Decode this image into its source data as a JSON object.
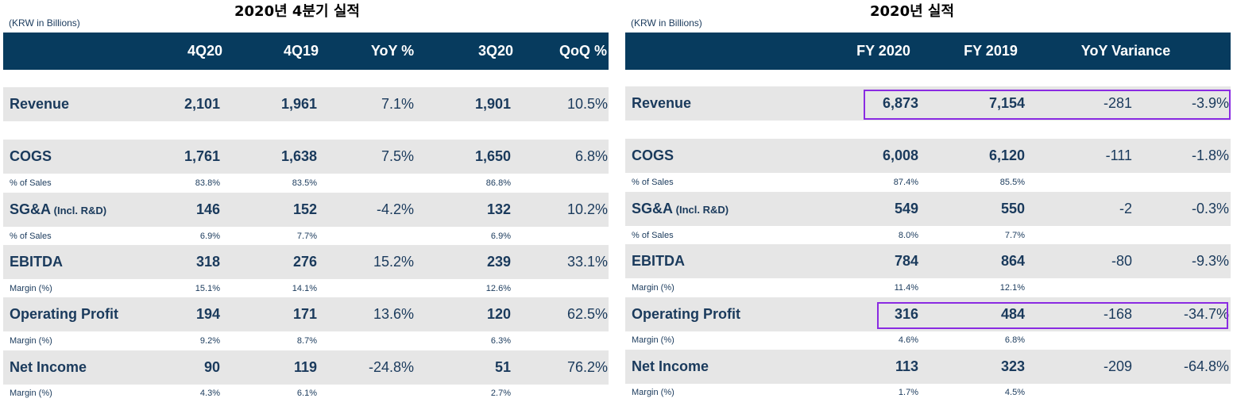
{
  "left": {
    "title": "2020년 4분기 실적",
    "unit": "(KRW in Billions)",
    "headers": [
      "4Q20",
      "4Q19",
      "YoY %",
      "3Q20",
      "QoQ %"
    ],
    "rows": {
      "revenue": {
        "label": "Revenue",
        "v": [
          "2,101",
          "1,961",
          "7.1%",
          "1,901",
          "10.5%"
        ]
      },
      "cogs": {
        "label": "COGS",
        "v": [
          "1,761",
          "1,638",
          "7.5%",
          "1,650",
          "6.8%"
        ]
      },
      "cogs_sub": {
        "label": "% of Sales",
        "v": [
          "83.8%",
          "83.5%",
          "86.8%"
        ]
      },
      "sga": {
        "label": "SG&A",
        "label_small": " (Incl. R&D)",
        "v": [
          "146",
          "152",
          "-4.2%",
          "132",
          "10.2%"
        ]
      },
      "sga_sub": {
        "label": "% of Sales",
        "v": [
          "6.9%",
          "7.7%",
          "6.9%"
        ]
      },
      "ebitda": {
        "label": "EBITDA",
        "v": [
          "318",
          "276",
          "15.2%",
          "239",
          "33.1%"
        ]
      },
      "ebitda_sub": {
        "label": "Margin (%)",
        "v": [
          "15.1%",
          "14.1%",
          "12.6%"
        ]
      },
      "op": {
        "label": "Operating Profit",
        "v": [
          "194",
          "171",
          "13.6%",
          "120",
          "62.5%"
        ]
      },
      "op_sub": {
        "label": "Margin (%)",
        "v": [
          "9.2%",
          "8.7%",
          "6.3%"
        ]
      },
      "ni": {
        "label": "Net Income",
        "v": [
          "90",
          "119",
          "-24.8%",
          "51",
          "76.2%"
        ]
      },
      "ni_sub": {
        "label": "Margin (%)",
        "v": [
          "4.3%",
          "6.1%",
          "2.7%"
        ]
      }
    }
  },
  "right": {
    "title": "2020년 실적",
    "unit": "(KRW in Billions)",
    "headers": [
      "FY 2020",
      "FY 2019",
      "YoY Variance"
    ],
    "rows": {
      "revenue": {
        "label": "Revenue",
        "v": [
          "6,873",
          "7,154",
          "-281",
          "-3.9%"
        ]
      },
      "cogs": {
        "label": "COGS",
        "v": [
          "6,008",
          "6,120",
          "-111",
          "-1.8%"
        ]
      },
      "cogs_sub": {
        "label": "% of Sales",
        "v": [
          "87.4%",
          "85.5%"
        ]
      },
      "sga": {
        "label": "SG&A",
        "label_small": " (Incl. R&D)",
        "v": [
          "549",
          "550",
          "-2",
          "-0.3%"
        ]
      },
      "sga_sub": {
        "label": "% of Sales",
        "v": [
          "8.0%",
          "7.7%"
        ]
      },
      "ebitda": {
        "label": "EBITDA",
        "v": [
          "784",
          "864",
          "-80",
          "-9.3%"
        ]
      },
      "ebitda_sub": {
        "label": "Margin (%)",
        "v": [
          "11.4%",
          "12.1%"
        ]
      },
      "op": {
        "label": "Operating Profit",
        "v": [
          "316",
          "484",
          "-168",
          "-34.7%"
        ]
      },
      "op_sub": {
        "label": "Margin (%)",
        "v": [
          "4.6%",
          "6.8%"
        ]
      },
      "ni": {
        "label": "Net Income",
        "v": [
          "113",
          "323",
          "-209",
          "-64.8%"
        ]
      },
      "ni_sub": {
        "label": "Margin (%)",
        "v": [
          "1.7%",
          "4.5%"
        ]
      }
    }
  },
  "colors": {
    "header_bg": "#073b5e",
    "row_bg": "#e6e6e6",
    "text": "#1a3a5c",
    "highlight": "#8a2be2"
  }
}
